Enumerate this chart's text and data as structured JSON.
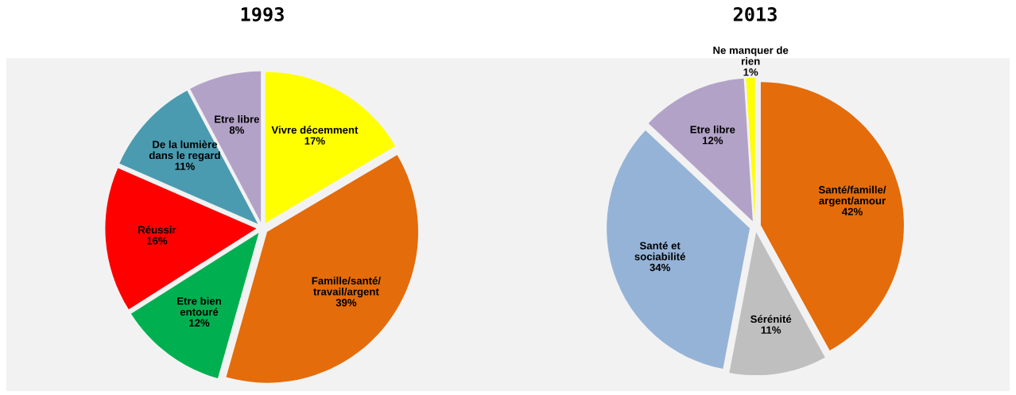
{
  "chart_data": [
    {
      "type": "pie",
      "title": "1993",
      "categories": [
        "Vivre décemment",
        "Famille/santé/\ntravail/argent",
        "Etre bien\nentouré",
        "Réussir",
        "De la lumière\ndans le regard",
        "Etre libre"
      ],
      "values": [
        17,
        39,
        12,
        16,
        11,
        8
      ],
      "value_labels": [
        "17%",
        "39%",
        "12%",
        "16%",
        "11%",
        "8%"
      ],
      "colors": [
        "#ffff00",
        "#e46c0a",
        "#00b050",
        "#ff0000",
        "#4a9bb0",
        "#b3a2c7"
      ]
    },
    {
      "type": "pie",
      "title": "2013",
      "categories": [
        "Santé/famille/\nargent/amour",
        "Sérénité",
        "Santé et\nsociabilité",
        "Etre libre",
        "Ne manquer de\nrien"
      ],
      "values": [
        42,
        11,
        34,
        12,
        1
      ],
      "value_labels": [
        "42%",
        "11%",
        "34%",
        "12%",
        "1%"
      ],
      "colors": [
        "#e46c0a",
        "#bfbfbf",
        "#95b3d7",
        "#b3a2c7",
        "#ffff00"
      ]
    }
  ]
}
